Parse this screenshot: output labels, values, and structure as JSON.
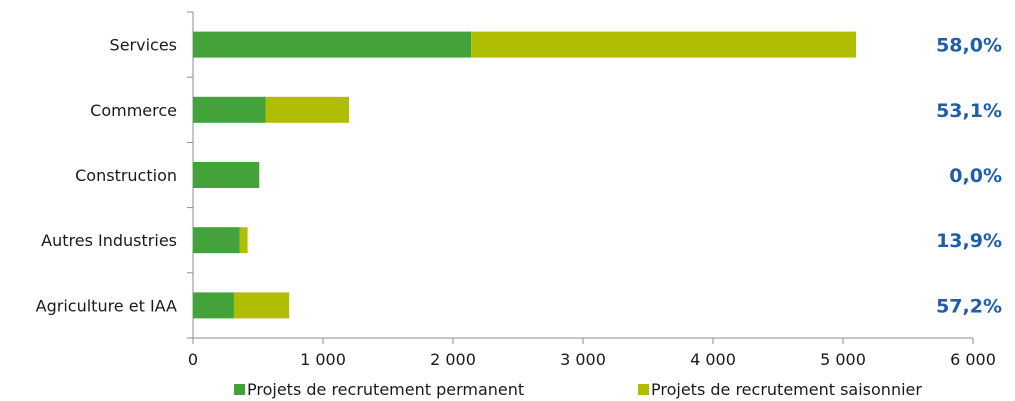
{
  "chart_data": {
    "type": "bar",
    "orientation": "horizontal",
    "stacked": true,
    "categories": [
      "Services",
      "Commerce",
      "Construction",
      "Autres Industries",
      "Agriculture et IAA"
    ],
    "series": [
      {
        "name": "Projets de recrutement permanent",
        "values": [
          2140,
          560,
          510,
          360,
          315
        ],
        "color": "#43a33a"
      },
      {
        "name": "Projets de recrutement saisonnier",
        "values": [
          2960,
          640,
          0,
          60,
          425
        ],
        "color": "#afbe00"
      }
    ],
    "side_labels": [
      "58,0%",
      "53,1%",
      "0,0%",
      "13,9%",
      "57,2%"
    ],
    "side_label_color": "#1f5ea8",
    "xlim": [
      0,
      6000
    ],
    "xticks": [
      0,
      1000,
      2000,
      3000,
      4000,
      5000,
      6000
    ],
    "xtick_labels": [
      "0",
      "1 000",
      "2 000",
      "3 000",
      "4 000",
      "5 000",
      "6 000"
    ],
    "grid": false,
    "legend_position": "bottom"
  }
}
